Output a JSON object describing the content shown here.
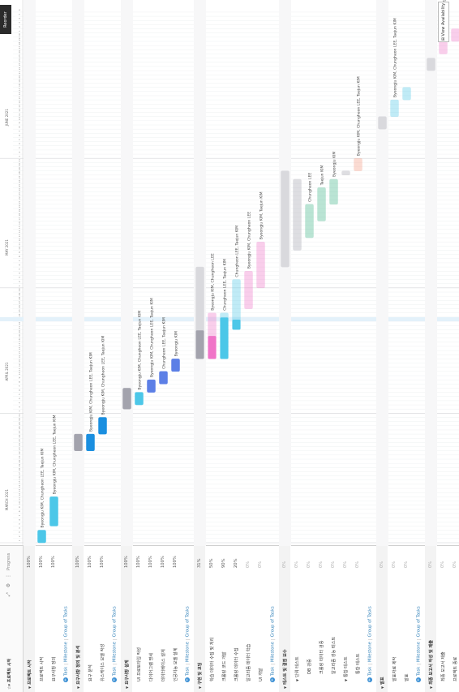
{
  "header": {
    "task_col": "☆▾ 프로젝트 시작",
    "progress_col": "Progress",
    "controls": "⤢ ⚙ ⋮"
  },
  "timeline": {
    "months": [
      "MARCH 2021",
      "APRIL 2021",
      "MAY 2021",
      "JUNE 2021"
    ],
    "start_date": "2021-03-01",
    "end_date": "2021-07-06"
  },
  "buttons": {
    "reorder": "Reorder Groups",
    "availability": "⊞ View Availability"
  },
  "add_row": {
    "task": "Task",
    "milestone": "Milestone",
    "group": "Group of Tasks"
  },
  "colors": {
    "group": "#a3a3ad",
    "blue": "#1a8fe0",
    "cyan": "#4cc7e8",
    "lav": "#5c7fe6",
    "pink": "#f074c8",
    "green": "#3cb486",
    "salmon": "#f59a80",
    "today": "#e3f1fa"
  },
  "rows": [
    {
      "name": "프로젝트 시작",
      "level": 0,
      "kind": "grp",
      "progress": "100%"
    },
    {
      "name": "프로젝트 시작",
      "level": 1,
      "kind": "task",
      "progress": "100%",
      "bar": {
        "start": "2021-03-01",
        "end": "2021-03-04",
        "color": "cyan",
        "done": 1
      },
      "assignee": "Byeongju KIM, Chungheon LEE, Taejun KIM"
    },
    {
      "name": "요구사항 정의",
      "level": 1,
      "kind": "task",
      "progress": "100%",
      "bar": {
        "start": "2021-03-05",
        "end": "2021-03-12",
        "color": "cyan",
        "done": 1
      },
      "assignee": "Byeongju KIM, Chungheon LEE, Taejun KIM"
    },
    {
      "kind": "add"
    },
    {
      "name": "요구사항 정의 및 분석",
      "level": 0,
      "kind": "grp",
      "progress": "100%",
      "bar": {
        "start": "2021-03-23",
        "end": "2021-03-27",
        "color": "group",
        "done": 1
      }
    },
    {
      "name": "요구 분석",
      "level": 1,
      "kind": "task",
      "progress": "100%",
      "bar": {
        "start": "2021-03-23",
        "end": "2021-03-27",
        "color": "blue",
        "done": 1
      },
      "assignee": "Byeongju KIM, Chungheon LEE, Taejun KIM"
    },
    {
      "name": "유스케이스 모델 작성",
      "level": 1,
      "kind": "task",
      "progress": "100%",
      "bar": {
        "start": "2021-03-27",
        "end": "2021-03-31",
        "color": "blue",
        "done": 1
      },
      "assignee": "Byeongju KIM, Chungheon LEE, Taejun KIM"
    },
    {
      "kind": "add"
    },
    {
      "name": "요구사항 설계",
      "level": 0,
      "kind": "grp",
      "progress": "100%",
      "bar": {
        "start": "2021-04-02",
        "end": "2021-04-07",
        "color": "group",
        "done": 1
      }
    },
    {
      "name": "UI 프로토타입 작성",
      "level": 1,
      "kind": "task",
      "progress": "100%",
      "bar": {
        "start": "2021-04-03",
        "end": "2021-04-06",
        "color": "cyan",
        "done": 1
      },
      "assignee": "Byeongju KIM, Chungheon LEE, Taejun KIM"
    },
    {
      "name": "다이어그램 명세",
      "level": 1,
      "kind": "task",
      "progress": "100%",
      "bar": {
        "start": "2021-04-06",
        "end": "2021-04-09",
        "color": "lav",
        "done": 1
      },
      "assignee": "Byeongju KIM, Chungheon LEE, Taejun KIM"
    },
    {
      "name": "데이터베이스 설계",
      "level": 1,
      "kind": "task",
      "progress": "100%",
      "bar": {
        "start": "2021-04-08",
        "end": "2021-04-11",
        "color": "lav",
        "done": 1
      },
      "assignee": "Chungheon LEE, Taejun KIM"
    },
    {
      "name": "인공지능 모델 설계",
      "level": 1,
      "kind": "task",
      "progress": "100%",
      "bar": {
        "start": "2021-04-11",
        "end": "2021-04-14",
        "color": "lav",
        "done": 1
      },
      "assignee": "Byeongju KIM"
    },
    {
      "kind": "add"
    },
    {
      "name": "구현 및 코딩",
      "level": 0,
      "kind": "grp",
      "progress": "31%",
      "bar": {
        "start": "2021-04-14",
        "end": "2021-05-06",
        "color": "group",
        "done": 0.31
      }
    },
    {
      "name": "학습 데이터 수집 및 처리",
      "level": 1,
      "kind": "task",
      "progress": "50%",
      "bar": {
        "start": "2021-04-14",
        "end": "2021-04-25",
        "color": "pink",
        "done": 0.5
      },
      "assignee": "Byeongju KIM, Chungheon LEE"
    },
    {
      "name": "크롤링 코드 개발",
      "level": 1,
      "kind": "task",
      "progress": "90%",
      "bar": {
        "start": "2021-04-14",
        "end": "2021-04-25",
        "color": "cyan",
        "done": 0.9
      },
      "assignee": "Chungheon LEE, Taejun KIM"
    },
    {
      "name": "크롤링 데이터 수집",
      "level": 1,
      "kind": "task",
      "progress": "20%",
      "bar": {
        "start": "2021-04-21",
        "end": "2021-05-03",
        "color": "cyan",
        "done": 0.2
      },
      "assignee": "Chungheon LEE, Taejun KIM"
    },
    {
      "name": "알고리즘 데이터 학습",
      "level": 1,
      "kind": "task",
      "progress": "0%",
      "bar": {
        "start": "2021-04-26",
        "end": "2021-05-05",
        "color": "pink",
        "done": 0
      },
      "assignee": "Byeongju KIM, Chungheon LEE"
    },
    {
      "name": "UI 개발",
      "level": 1,
      "kind": "task",
      "progress": "0%",
      "bar": {
        "start": "2021-05-01",
        "end": "2021-05-12",
        "color": "pink",
        "done": 0
      },
      "assignee": "Byeongju KIM, Taejun KIM"
    },
    {
      "kind": "add"
    },
    {
      "name": "테스트 및 결점 보수",
      "level": 0,
      "kind": "grp",
      "progress": "0%",
      "bar": {
        "start": "2021-05-06",
        "end": "2021-05-29",
        "color": "group",
        "done": 0
      }
    },
    {
      "name": "단위 테스트",
      "level": 1,
      "kind": "sub",
      "progress": "0%",
      "bar": {
        "start": "2021-05-10",
        "end": "2021-05-27",
        "color": "group",
        "done": 0
      }
    },
    {
      "name": "DB 검증",
      "level": 2,
      "kind": "task",
      "progress": "0%",
      "bar": {
        "start": "2021-05-13",
        "end": "2021-05-21",
        "color": "green",
        "done": 0
      },
      "assignee": "Chungheon LEE"
    },
    {
      "name": "크롤링 데이터 검증",
      "level": 2,
      "kind": "task",
      "progress": "0%",
      "bar": {
        "start": "2021-05-17",
        "end": "2021-05-25",
        "color": "green",
        "done": 0
      },
      "assignee": "Taejun KIM"
    },
    {
      "name": "알고리즘 성능 테스트",
      "level": 2,
      "kind": "task",
      "progress": "0%",
      "bar": {
        "start": "2021-05-21",
        "end": "2021-05-27",
        "color": "green",
        "done": 0
      },
      "assignee": "Byeongju KIM"
    },
    {
      "name": "통합 테스트",
      "level": 1,
      "kind": "sub",
      "progress": "0%",
      "bar": {
        "start": "2021-05-28",
        "end": "2021-05-29",
        "color": "group",
        "done": 0
      }
    },
    {
      "name": "통합 테스트",
      "level": 2,
      "kind": "task",
      "progress": "0%",
      "bar": {
        "start": "2021-05-29",
        "end": "2021-06-01",
        "color": "salmon",
        "done": 0
      },
      "assignee": "Byeongju KIM, Chungheon LEE, Taejun KIM"
    },
    {
      "kind": "add"
    },
    {
      "name": "발표",
      "level": 0,
      "kind": "grp",
      "progress": "0%",
      "bar": {
        "start": "2021-06-08",
        "end": "2021-06-11",
        "color": "group",
        "done": 0
      }
    },
    {
      "name": "발표자료 제작",
      "level": 1,
      "kind": "task",
      "progress": "0%",
      "bar": {
        "start": "2021-06-11",
        "end": "2021-06-15",
        "color": "cyan",
        "done": 0
      },
      "assignee": "Byeongju KIM, Chungheon LEE, Taejun KIM"
    },
    {
      "name": "발표",
      "level": 1,
      "kind": "task",
      "progress": "0%",
      "bar": {
        "start": "2021-06-15",
        "end": "2021-06-18",
        "color": "cyan",
        "done": 0
      }
    },
    {
      "kind": "add"
    },
    {
      "name": "최종 보고서 작성 및 제출",
      "level": 0,
      "kind": "grp",
      "progress": "0%",
      "bar": {
        "start": "2021-06-22",
        "end": "2021-06-25",
        "color": "group",
        "done": 0
      }
    },
    {
      "name": "최종 보고서 제출",
      "level": 1,
      "kind": "task",
      "progress": "0%",
      "bar": {
        "start": "2021-06-26",
        "end": "2021-06-29",
        "color": "pink",
        "done": 0
      },
      "assignee": "Byeongju KIM, Chungheon LEE, Taejun KIM"
    },
    {
      "name": "프로젝트 종료",
      "level": 1,
      "kind": "task",
      "progress": "0%",
      "bar": {
        "start": "2021-06-29",
        "end": "2021-07-02",
        "color": "pink",
        "done": 0
      }
    }
  ]
}
